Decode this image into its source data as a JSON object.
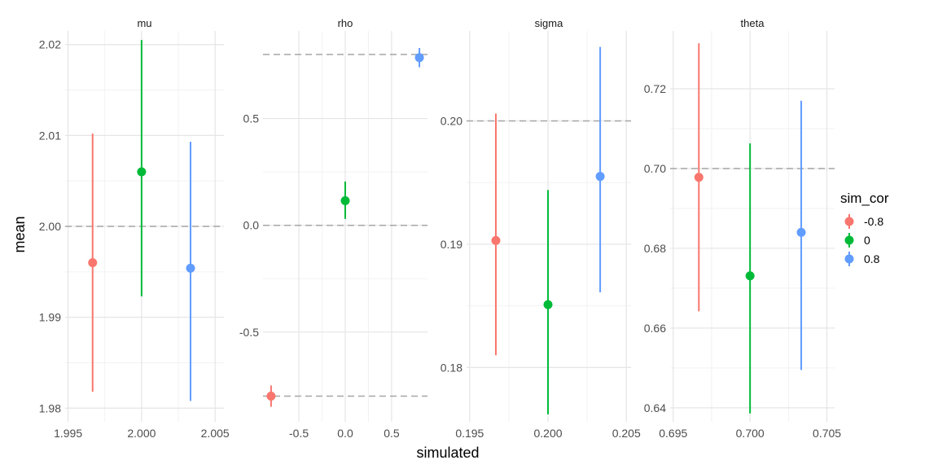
{
  "chart_data": {
    "type": "scatter",
    "subtype": "pointrange",
    "xlabel": "simulated",
    "ylabel": "mean",
    "legend": {
      "title": "sim_cor",
      "placement": "right",
      "entries": [
        {
          "label": "-0.8",
          "color": "#F8766D"
        },
        {
          "label": "0",
          "color": "#00BA38"
        },
        {
          "label": "0.8",
          "color": "#619CFF"
        }
      ]
    },
    "panels": [
      {
        "title": "mu",
        "xlim": [
          1.9948,
          2.0056
        ],
        "ylim": [
          1.9785,
          2.0215
        ],
        "xticks": [
          1.995,
          2.0,
          2.005
        ],
        "xtick_labels": [
          "1.995",
          "2.000",
          "2.005"
        ],
        "yticks": [
          1.98,
          1.99,
          2.0,
          2.01,
          2.02
        ],
        "ytick_labels": [
          "1.98",
          "1.99",
          "2.00",
          "2.01",
          "2.02"
        ],
        "reference": 2.0,
        "points": [
          {
            "group": "-0.8",
            "x": 1.99667,
            "y": 1.996,
            "low": 1.9818,
            "high": 2.0102
          },
          {
            "group": "0",
            "x": 2.0,
            "y": 2.006,
            "low": 1.9923,
            "high": 2.0205
          },
          {
            "group": "0.8",
            "x": 2.00333,
            "y": 1.9954,
            "low": 1.9808,
            "high": 2.0093
          }
        ]
      },
      {
        "title": "rho",
        "xlim": [
          -0.887,
          0.887
        ],
        "ylim": [
          -0.92,
          0.91
        ],
        "xticks": [
          -0.5,
          0.0,
          0.5
        ],
        "xtick_labels": [
          "-0.5",
          "0.0",
          "0.5"
        ],
        "yticks": [
          -0.5,
          0.0,
          0.5
        ],
        "ytick_labels": [
          "-0.5",
          "0.0",
          "0.5"
        ],
        "reference_lines": [
          -0.8,
          0.0,
          0.8
        ],
        "points": [
          {
            "group": "-0.8",
            "x": -0.8,
            "y": -0.8,
            "low": -0.85,
            "high": -0.75
          },
          {
            "group": "0",
            "x": 0.0,
            "y": 0.115,
            "low": 0.03,
            "high": 0.205
          },
          {
            "group": "0.8",
            "x": 0.8,
            "y": 0.785,
            "low": 0.74,
            "high": 0.83
          }
        ]
      },
      {
        "title": "sigma",
        "xlim": [
          0.1948,
          0.2053
        ],
        "ylim": [
          0.1756,
          0.2073
        ],
        "xticks": [
          0.195,
          0.2,
          0.205
        ],
        "xtick_labels": [
          "0.195",
          "0.200",
          "0.205"
        ],
        "yticks": [
          0.18,
          0.19,
          0.2
        ],
        "ytick_labels": [
          "0.18",
          "0.19",
          "0.20"
        ],
        "reference": 0.2,
        "points": [
          {
            "group": "-0.8",
            "x": 0.19667,
            "y": 0.1903,
            "low": 0.181,
            "high": 0.2006
          },
          {
            "group": "0",
            "x": 0.2,
            "y": 0.1851,
            "low": 0.1762,
            "high": 0.1944
          },
          {
            "group": "0.8",
            "x": 0.20333,
            "y": 0.1955,
            "low": 0.1861,
            "high": 0.206
          }
        ]
      },
      {
        "title": "theta",
        "xlim": [
          0.6948,
          0.7055
        ],
        "ylim": [
          0.6365,
          0.7345
        ],
        "xticks": [
          0.695,
          0.7,
          0.705
        ],
        "xtick_labels": [
          "0.695",
          "0.700",
          "0.705"
        ],
        "yticks": [
          0.64,
          0.66,
          0.68,
          0.7,
          0.72
        ],
        "ytick_labels": [
          "0.64",
          "0.66",
          "0.68",
          "0.70",
          "0.72"
        ],
        "reference": 0.7,
        "points": [
          {
            "group": "-0.8",
            "x": 0.69667,
            "y": 0.6978,
            "low": 0.6642,
            "high": 0.7314
          },
          {
            "group": "0",
            "x": 0.7,
            "y": 0.6731,
            "low": 0.6386,
            "high": 0.7063
          },
          {
            "group": "0.8",
            "x": 0.70333,
            "y": 0.684,
            "low": 0.6495,
            "high": 0.717
          }
        ]
      }
    ]
  }
}
